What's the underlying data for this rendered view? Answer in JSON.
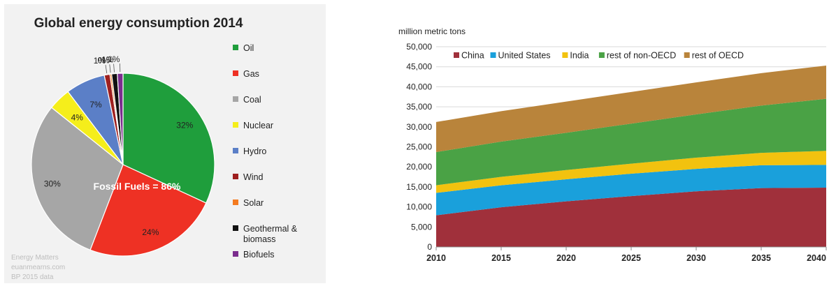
{
  "chart_data": [
    {
      "type": "pie",
      "title": "Global energy consumption 2014",
      "center_label": "Fossil Fuels = 86%",
      "legend_position": "right",
      "slices": [
        {
          "name": "Oil",
          "value": 32,
          "label": "32%",
          "color": "#1f9e3c"
        },
        {
          "name": "Gas",
          "value": 24,
          "label": "24%",
          "color": "#ee3124"
        },
        {
          "name": "Coal",
          "value": 30,
          "label": "30%",
          "color": "#a6a6a6"
        },
        {
          "name": "Nuclear",
          "value": 4,
          "label": "4%",
          "color": "#f5ee1b"
        },
        {
          "name": "Hydro",
          "value": 7,
          "label": "7%",
          "color": "#5b7fc7"
        },
        {
          "name": "Wind",
          "value": 1,
          "label": "1%",
          "color": "#9e1f1f"
        },
        {
          "name": "Solar",
          "value": 0.3,
          "label": "0%",
          "color": "#f47b20"
        },
        {
          "name": "Geothermal & biomass",
          "value": 1,
          "label": "1%",
          "color": "#111111"
        },
        {
          "name": "Biofuels",
          "value": 1,
          "label": "1%",
          "color": "#7b2d8e"
        }
      ],
      "source_lines": [
        "Energy Matters",
        "euanmearns.com",
        "BP 2015 data"
      ]
    },
    {
      "type": "area",
      "stacked": true,
      "title": "",
      "ylabel": "million metric tons",
      "xlabel": "",
      "x": [
        2010,
        2015,
        2020,
        2025,
        2030,
        2035,
        2040
      ],
      "xticks": [
        "2010",
        "2015",
        "2020",
        "2025",
        "2030",
        "2035",
        "2040"
      ],
      "ylim": [
        0,
        50000
      ],
      "yticks": [
        "0",
        "5,000",
        "10,000",
        "15,000",
        "20,000",
        "25,000",
        "30,000",
        "35,000",
        "40,000",
        "45,000",
        "50,000"
      ],
      "grid": "horizontal",
      "legend_position": "top",
      "series": [
        {
          "name": "China",
          "color": "#a0303b",
          "values": [
            7900,
            9900,
            11400,
            12700,
            13900,
            14700,
            14800
          ]
        },
        {
          "name": "United States",
          "color": "#1aa0db",
          "values": [
            5600,
            5500,
            5500,
            5600,
            5600,
            5700,
            5700
          ]
        },
        {
          "name": "India",
          "color": "#f2c20f",
          "values": [
            1900,
            2100,
            2300,
            2500,
            2800,
            3100,
            3500
          ]
        },
        {
          "name": "rest of non-OECD",
          "color": "#4aa245",
          "values": [
            8300,
            8800,
            9300,
            10000,
            10800,
            11800,
            13000
          ]
        },
        {
          "name": "rest of OECD",
          "color": "#b9843b",
          "values": [
            7500,
            7600,
            7800,
            7900,
            8000,
            8100,
            8300
          ]
        }
      ]
    }
  ]
}
